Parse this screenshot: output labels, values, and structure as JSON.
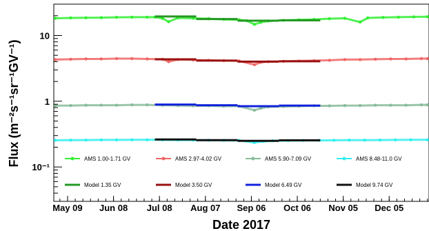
{
  "chart_data": {
    "type": "scatter",
    "xlabel": "Date 2017",
    "ylabel": "Flux (m⁻²s⁻¹sr⁻¹GV⁻¹)",
    "yscale": "log",
    "ylim": [
      0.03,
      30
    ],
    "xlim": [
      "2017-04-30",
      "2017-12-31"
    ],
    "x_ticks": [
      {
        "date": "2017-05-09",
        "label": "May 09"
      },
      {
        "date": "2017-06-08",
        "label": "Jun 08"
      },
      {
        "date": "2017-07-08",
        "label": "Jul 08"
      },
      {
        "date": "2017-08-07",
        "label": "Aug 07"
      },
      {
        "date": "2017-09-06",
        "label": "Sep 06"
      },
      {
        "date": "2017-10-06",
        "label": "Oct 06"
      },
      {
        "date": "2017-11-05",
        "label": "Nov 05"
      },
      {
        "date": "2017-12-05",
        "label": "Dec 05"
      }
    ],
    "y_ticks": [
      {
        "value": 10,
        "label": "10"
      },
      {
        "value": 1,
        "label": "1"
      },
      {
        "value": 0.1,
        "label": "10⁻¹"
      }
    ],
    "grid": false,
    "legend_position": "lower-center",
    "data_series": [
      {
        "name": "AMS 1.00-1.71 GV",
        "color": "#33ee33",
        "points": [
          [
            "2017-05-01",
            18.3
          ],
          [
            "2017-05-11",
            18.5
          ],
          [
            "2017-05-21",
            18.6
          ],
          [
            "2017-05-31",
            18.7
          ],
          [
            "2017-06-10",
            18.9
          ],
          [
            "2017-06-20",
            19.0
          ],
          [
            "2017-06-30",
            19.0
          ],
          [
            "2017-07-05",
            19.0
          ],
          [
            "2017-07-10",
            18.2
          ],
          [
            "2017-07-14",
            16.2
          ],
          [
            "2017-07-20",
            18.5
          ],
          [
            "2017-07-30",
            18.3
          ],
          [
            "2017-08-09",
            18.0
          ],
          [
            "2017-08-19",
            17.6
          ],
          [
            "2017-08-29",
            17.3
          ],
          [
            "2017-09-03",
            16.8
          ],
          [
            "2017-09-08",
            14.8
          ],
          [
            "2017-09-12",
            15.8
          ],
          [
            "2017-09-17",
            16.6
          ],
          [
            "2017-09-27",
            17.0
          ],
          [
            "2017-10-07",
            17.3
          ],
          [
            "2017-10-17",
            17.6
          ],
          [
            "2017-10-27",
            18.0
          ],
          [
            "2017-11-06",
            18.3
          ],
          [
            "2017-11-16",
            16.0
          ],
          [
            "2017-11-21",
            18.5
          ],
          [
            "2017-12-01",
            18.8
          ],
          [
            "2017-12-11",
            19.0
          ],
          [
            "2017-12-21",
            19.2
          ],
          [
            "2017-12-30",
            19.3
          ]
        ]
      },
      {
        "name": "AMS 2.97-4.02 GV",
        "color": "#ee6666",
        "points": [
          [
            "2017-05-01",
            4.3
          ],
          [
            "2017-05-11",
            4.35
          ],
          [
            "2017-05-21",
            4.4
          ],
          [
            "2017-05-31",
            4.4
          ],
          [
            "2017-06-10",
            4.45
          ],
          [
            "2017-06-20",
            4.45
          ],
          [
            "2017-06-30",
            4.4
          ],
          [
            "2017-07-10",
            4.35
          ],
          [
            "2017-07-14",
            4.0
          ],
          [
            "2017-07-20",
            4.3
          ],
          [
            "2017-07-30",
            4.25
          ],
          [
            "2017-08-09",
            4.2
          ],
          [
            "2017-08-19",
            4.15
          ],
          [
            "2017-08-29",
            4.1
          ],
          [
            "2017-09-08",
            3.6
          ],
          [
            "2017-09-12",
            3.9
          ],
          [
            "2017-09-17",
            4.0
          ],
          [
            "2017-09-27",
            4.05
          ],
          [
            "2017-10-07",
            4.1
          ],
          [
            "2017-10-17",
            4.15
          ],
          [
            "2017-10-27",
            4.2
          ],
          [
            "2017-11-06",
            4.3
          ],
          [
            "2017-11-16",
            4.3
          ],
          [
            "2017-11-26",
            4.35
          ],
          [
            "2017-12-06",
            4.4
          ],
          [
            "2017-12-16",
            4.4
          ],
          [
            "2017-12-26",
            4.45
          ],
          [
            "2017-12-30",
            4.45
          ]
        ]
      },
      {
        "name": "AMS 5.90-7.09 GV",
        "color": "#88bb99",
        "points": [
          [
            "2017-05-01",
            0.86
          ],
          [
            "2017-05-11",
            0.86
          ],
          [
            "2017-05-21",
            0.87
          ],
          [
            "2017-05-31",
            0.87
          ],
          [
            "2017-06-10",
            0.87
          ],
          [
            "2017-06-20",
            0.88
          ],
          [
            "2017-06-30",
            0.88
          ],
          [
            "2017-07-10",
            0.87
          ],
          [
            "2017-07-20",
            0.86
          ],
          [
            "2017-07-30",
            0.85
          ],
          [
            "2017-08-09",
            0.85
          ],
          [
            "2017-08-19",
            0.84
          ],
          [
            "2017-08-29",
            0.84
          ],
          [
            "2017-09-08",
            0.73
          ],
          [
            "2017-09-12",
            0.78
          ],
          [
            "2017-09-17",
            0.82
          ],
          [
            "2017-09-27",
            0.83
          ],
          [
            "2017-10-07",
            0.84
          ],
          [
            "2017-10-17",
            0.85
          ],
          [
            "2017-10-27",
            0.85
          ],
          [
            "2017-11-06",
            0.86
          ],
          [
            "2017-11-16",
            0.86
          ],
          [
            "2017-11-26",
            0.87
          ],
          [
            "2017-12-06",
            0.87
          ],
          [
            "2017-12-16",
            0.87
          ],
          [
            "2017-12-26",
            0.88
          ],
          [
            "2017-12-30",
            0.88
          ]
        ]
      },
      {
        "name": "AMS 8.48-11.0 GV",
        "color": "#33eeee",
        "points": [
          [
            "2017-05-01",
            0.255
          ],
          [
            "2017-05-11",
            0.256
          ],
          [
            "2017-05-21",
            0.257
          ],
          [
            "2017-05-31",
            0.258
          ],
          [
            "2017-06-10",
            0.258
          ],
          [
            "2017-06-20",
            0.259
          ],
          [
            "2017-06-30",
            0.259
          ],
          [
            "2017-07-10",
            0.258
          ],
          [
            "2017-07-20",
            0.257
          ],
          [
            "2017-07-30",
            0.256
          ],
          [
            "2017-08-09",
            0.255
          ],
          [
            "2017-08-19",
            0.254
          ],
          [
            "2017-08-29",
            0.253
          ],
          [
            "2017-09-08",
            0.235
          ],
          [
            "2017-09-14",
            0.245
          ],
          [
            "2017-09-20",
            0.25
          ],
          [
            "2017-09-30",
            0.252
          ],
          [
            "2017-10-10",
            0.253
          ],
          [
            "2017-10-20",
            0.254
          ],
          [
            "2017-10-30",
            0.255
          ],
          [
            "2017-11-09",
            0.256
          ],
          [
            "2017-11-19",
            0.256
          ],
          [
            "2017-11-29",
            0.257
          ],
          [
            "2017-12-09",
            0.258
          ],
          [
            "2017-12-19",
            0.259
          ],
          [
            "2017-12-30",
            0.259
          ]
        ]
      }
    ],
    "model_series": [
      {
        "name": "Model 1.35 GV",
        "color": "#229922",
        "segments": [
          [
            "2017-07-05",
            "2017-08-01",
            19.5
          ],
          [
            "2017-08-01",
            "2017-08-28",
            17.8
          ],
          [
            "2017-08-28",
            "2017-09-24",
            16.8
          ],
          [
            "2017-09-24",
            "2017-10-21",
            17.0
          ]
        ]
      },
      {
        "name": "Model 3.50 GV",
        "color": "#991111",
        "segments": [
          [
            "2017-07-05",
            "2017-08-01",
            4.35
          ],
          [
            "2017-08-01",
            "2017-08-28",
            4.15
          ],
          [
            "2017-08-28",
            "2017-09-24",
            4.0
          ],
          [
            "2017-09-24",
            "2017-10-21",
            4.05
          ]
        ]
      },
      {
        "name": "Model 6.49 GV",
        "color": "#1122dd",
        "segments": [
          [
            "2017-07-05",
            "2017-08-01",
            0.89
          ],
          [
            "2017-08-01",
            "2017-08-28",
            0.87
          ],
          [
            "2017-08-28",
            "2017-09-24",
            0.84
          ],
          [
            "2017-09-24",
            "2017-10-21",
            0.86
          ]
        ]
      },
      {
        "name": "Model 9.74 GV",
        "color": "#111111",
        "segments": [
          [
            "2017-07-05",
            "2017-08-01",
            0.262
          ],
          [
            "2017-08-01",
            "2017-08-28",
            0.256
          ],
          [
            "2017-08-28",
            "2017-09-24",
            0.25
          ],
          [
            "2017-09-24",
            "2017-10-21",
            0.254
          ]
        ]
      }
    ]
  }
}
